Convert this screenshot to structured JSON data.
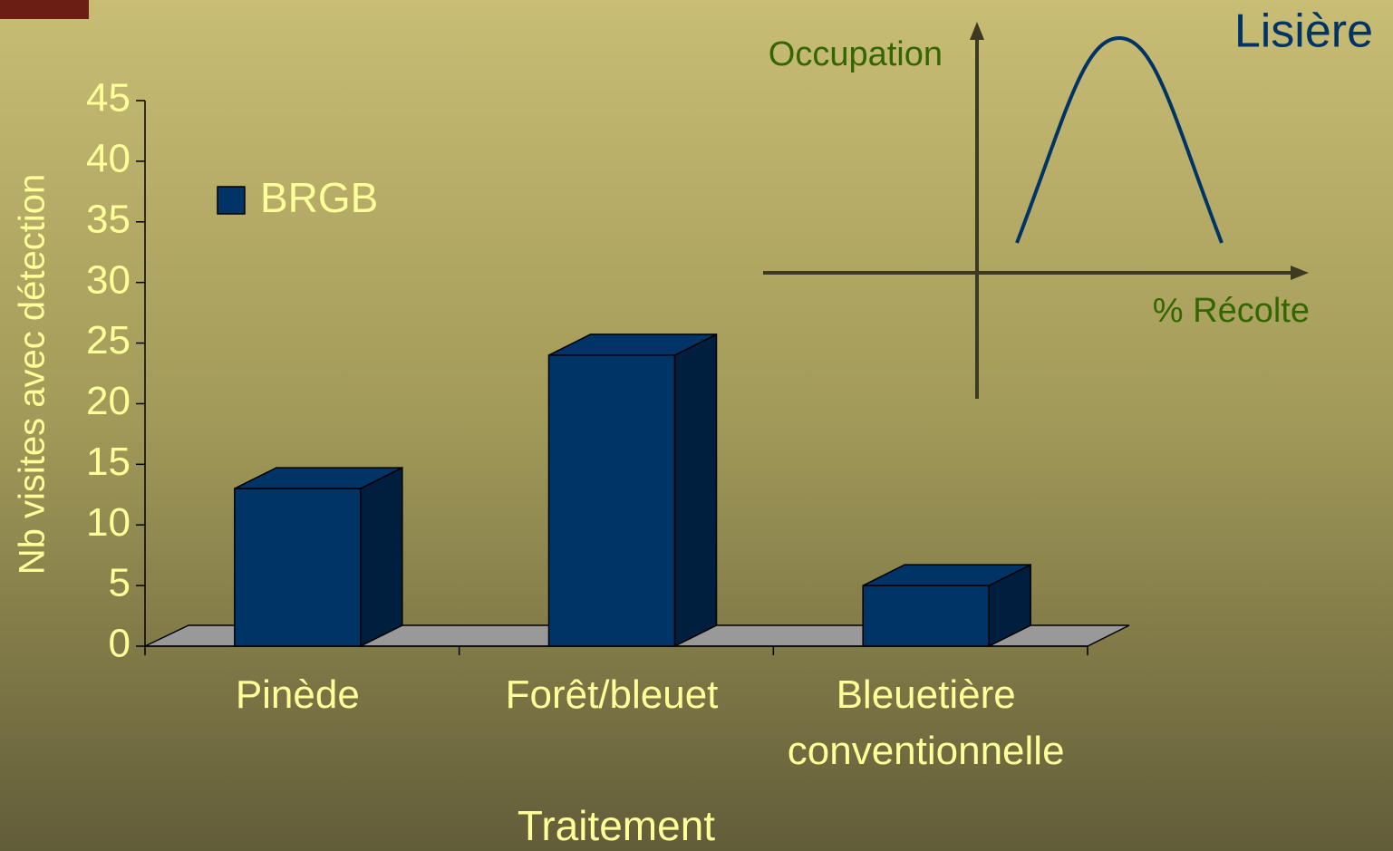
{
  "chart_data": {
    "type": "bar3d",
    "y_label": "Nb visites avec détection",
    "x_label": "Traitement",
    "categories": [
      "Pinède",
      "Forêt/bleuet",
      "Bleuetière conventionnelle"
    ],
    "series": [
      {
        "name": "BRGB",
        "color": "#003366",
        "values": [
          13,
          24,
          5
        ]
      }
    ],
    "ylim": [
      0,
      45
    ],
    "yticks": [
      0,
      5,
      10,
      15,
      20,
      25,
      30,
      35,
      40,
      45
    ],
    "annotations": {
      "title": "Lisière",
      "y_label": "Occupation",
      "x_label": "% Récolte"
    }
  }
}
